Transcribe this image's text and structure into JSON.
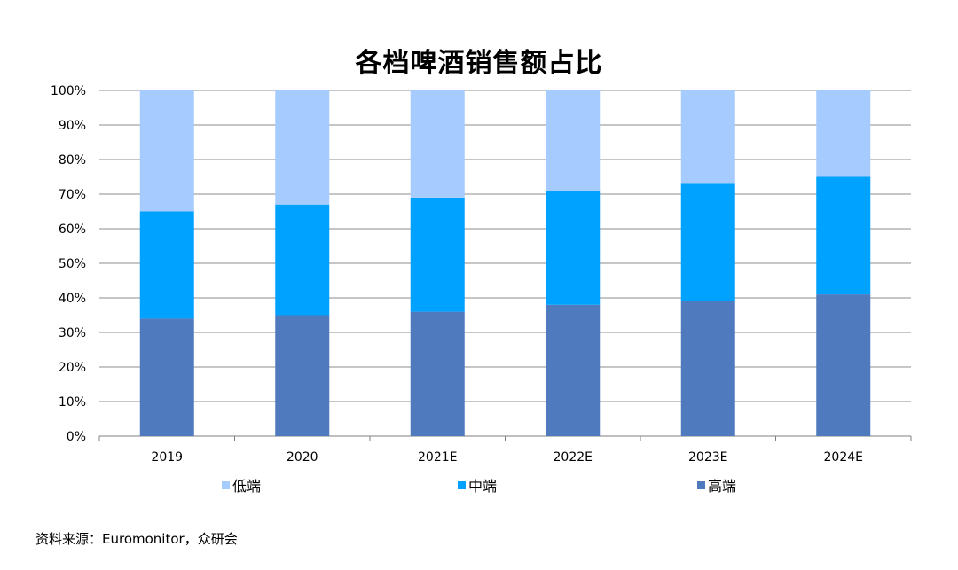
{
  "chart_data": {
    "type": "bar",
    "stacked": true,
    "percent": true,
    "title": "各档啤酒销售额占比",
    "categories": [
      "2019",
      "2020",
      "2021E",
      "2022E",
      "2023E",
      "2024E"
    ],
    "series": [
      {
        "name": "高端",
        "color": "#4F7ABE",
        "values": [
          34,
          35,
          36,
          38,
          39,
          41
        ]
      },
      {
        "name": "中端",
        "color": "#00A2FF",
        "values": [
          31,
          32,
          33,
          33,
          34,
          34
        ]
      },
      {
        "name": "低端",
        "color": "#A6CBFF",
        "values": [
          35,
          33,
          31,
          29,
          27,
          25
        ]
      }
    ],
    "legend_order": [
      "低端",
      "中端",
      "高端"
    ],
    "yticks": [
      "0%",
      "10%",
      "20%",
      "30%",
      "40%",
      "50%",
      "60%",
      "70%",
      "80%",
      "90%",
      "100%"
    ],
    "ylim": [
      0,
      100
    ],
    "grid": true,
    "legend_position": "bottom"
  },
  "source_text": "资料来源：Euromonitor，众研会"
}
